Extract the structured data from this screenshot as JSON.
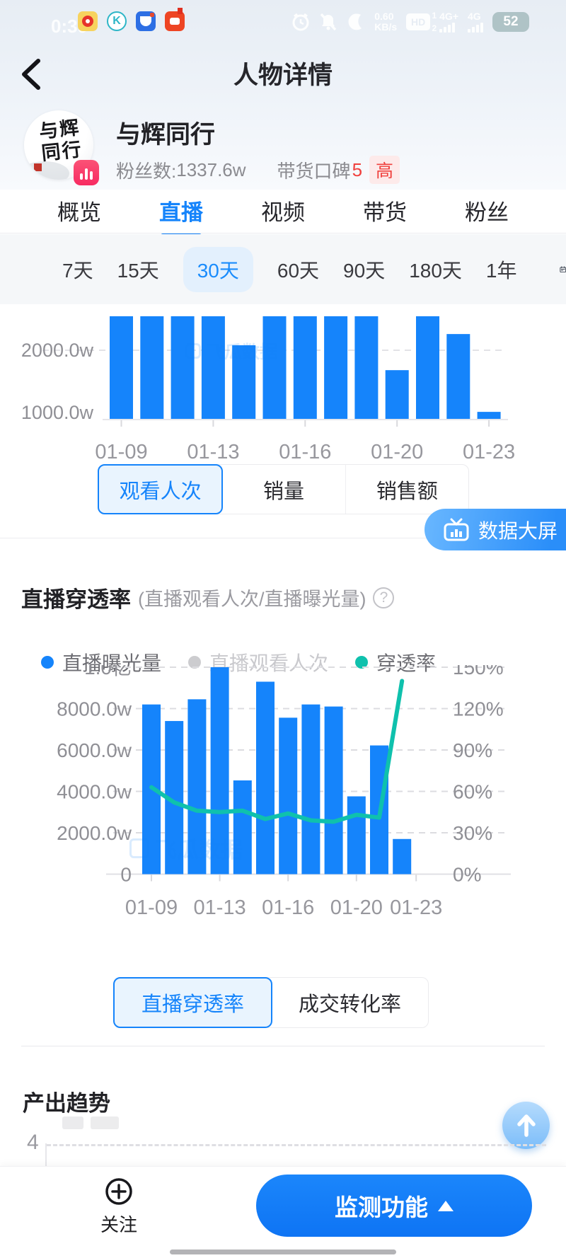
{
  "status_bar": {
    "time": "0:39",
    "net_speed_top": "0.60",
    "net_speed_bottom": "KB/s",
    "hd_label": "HD",
    "hd_sim1": "1",
    "hd_sim2": "2",
    "sim1_net": "4G+",
    "sim2_net": "4G",
    "battery_level": "52"
  },
  "header": {
    "title": "人物详情"
  },
  "profile": {
    "name": "与辉同行",
    "avatar_line1": "与辉",
    "avatar_line2": "同行",
    "fans_label": "粉丝数:",
    "fans_value": "1337.6w",
    "reputation_label": "带货口碑",
    "reputation_score": "5",
    "reputation_level": "高"
  },
  "tabs": [
    {
      "label": "概览",
      "active": false
    },
    {
      "label": "直播",
      "active": true
    },
    {
      "label": "视频",
      "active": false
    },
    {
      "label": "带货",
      "active": false
    },
    {
      "label": "粉丝",
      "active": false
    }
  ],
  "time_filters": [
    {
      "label": "7天",
      "active": false
    },
    {
      "label": "15天",
      "active": false
    },
    {
      "label": "30天",
      "active": true
    },
    {
      "label": "60天",
      "active": false
    },
    {
      "label": "90天",
      "active": false
    },
    {
      "label": "180天",
      "active": false
    },
    {
      "label": "1年",
      "active": false
    }
  ],
  "metric_switch": [
    {
      "label": "观看人次",
      "active": true
    },
    {
      "label": "销量",
      "active": false
    },
    {
      "label": "销售额",
      "active": false
    }
  ],
  "big_screen_label": "数据大屏",
  "penetration_section": {
    "title": "直播穿透率",
    "subtitle": "(直播观看人次/直播曝光量)",
    "help_icon": "?",
    "legend": [
      {
        "label": "直播曝光量",
        "color": "#1584fb",
        "muted": false
      },
      {
        "label": "直播观看人次",
        "color": "#cccccf",
        "muted": true
      },
      {
        "label": "穿透率",
        "color": "#0fc1ad",
        "muted": false
      }
    ]
  },
  "rate_switch": [
    {
      "label": "直播穿透率",
      "active": true
    },
    {
      "label": "成交转化率",
      "active": false
    }
  ],
  "output_section": {
    "title": "产出趋势",
    "visible_y_tick": "4"
  },
  "bottom_bar": {
    "follow_label": "关注",
    "monitor_label": "监测功能"
  },
  "watermark_text": "飞瓜数据",
  "colors": {
    "primary": "#1584fb",
    "teal": "#0fc1ad",
    "red": "#f0413e"
  },
  "chart_data": [
    {
      "id": "viewer_count_trend",
      "type": "bar",
      "metric": "观看人次",
      "unit": "w",
      "note": "chart partially scrolled out of view; null values = bar top clipped above visible area",
      "y_ticks_visible": [
        "2000.0w",
        "1000.0w"
      ],
      "x_tick_labels": [
        "01-09",
        "01-13",
        "01-16",
        "01-20",
        "01-23"
      ],
      "x_tick_bar_indices": [
        0,
        3,
        6,
        9,
        12
      ],
      "values": [
        null,
        null,
        null,
        null,
        2080,
        null,
        null,
        null,
        null,
        1680,
        null,
        2260,
        1010
      ]
    },
    {
      "id": "live_penetration",
      "type": "bar+line",
      "x_tick_labels": [
        "01-09",
        "01-13",
        "01-16",
        "01-20",
        "01-23"
      ],
      "x_tick_bar_indices": [
        0,
        3,
        6,
        9,
        11
      ],
      "left_axis": {
        "ticks": [
          "1.0亿",
          "8000.0w",
          "6000.0w",
          "4000.0w",
          "2000.0w",
          "0"
        ],
        "max_w": 10000
      },
      "right_axis": {
        "ticks": [
          "150%",
          "120%",
          "90%",
          "60%",
          "30%",
          "0%"
        ],
        "max_pct": 150
      },
      "grid": "dashed horizontal",
      "series": [
        {
          "name": "直播曝光量",
          "type": "bar",
          "color": "#1584fb",
          "values_w": [
            8200,
            7400,
            8450,
            10000,
            4530,
            9300,
            7560,
            8200,
            8100,
            3760,
            6220,
            1700
          ]
        },
        {
          "name": "直播观看人次",
          "type": "bar",
          "hidden": true
        },
        {
          "name": "穿透率",
          "type": "line",
          "color": "#0fc1ad",
          "values_pct": [
            63,
            52,
            46,
            45,
            46,
            40,
            44,
            39,
            38,
            43,
            41,
            140
          ]
        }
      ]
    },
    {
      "id": "output_trend",
      "type": "bar",
      "note": "mostly hidden behind bottom action bar",
      "y_ticks_visible": [
        "4"
      ]
    }
  ]
}
